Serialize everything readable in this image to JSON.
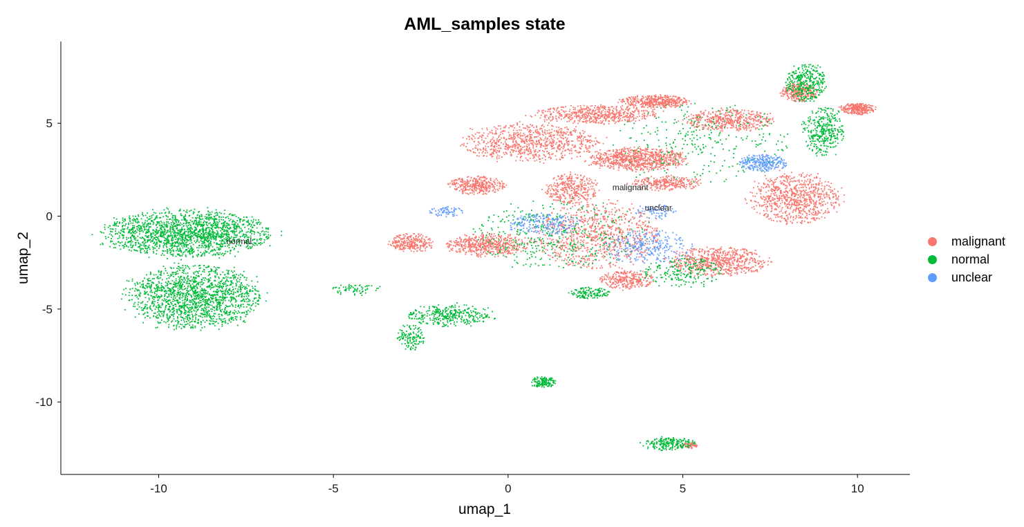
{
  "chart_data": {
    "type": "scatter",
    "title": "AML_samples state",
    "xlabel": "umap_1",
    "ylabel": "umap_2",
    "xlim": [
      -12.8,
      11.5
    ],
    "ylim": [
      -13.9,
      9.4
    ],
    "xticks": [
      -10,
      -5,
      0,
      5,
      10
    ],
    "yticks": [
      -10,
      -5,
      0,
      5
    ],
    "grid": false,
    "legend_position": "right",
    "series": [
      {
        "name": "malignant",
        "color": "#F8766D",
        "regions": [
          {
            "cx": 0.6,
            "cy": 4.0,
            "rx": 2.0,
            "ry": 1.0,
            "weight": 12
          },
          {
            "cx": 2.5,
            "cy": 5.5,
            "rx": 1.8,
            "ry": 0.5,
            "weight": 8
          },
          {
            "cx": 4.2,
            "cy": 6.2,
            "rx": 1.0,
            "ry": 0.35,
            "weight": 6
          },
          {
            "cx": 6.3,
            "cy": 5.2,
            "rx": 1.3,
            "ry": 0.6,
            "weight": 7
          },
          {
            "cx": 10.0,
            "cy": 5.8,
            "rx": 0.5,
            "ry": 0.3,
            "weight": 4
          },
          {
            "cx": 8.3,
            "cy": 6.7,
            "rx": 0.5,
            "ry": 0.5,
            "weight": 4
          },
          {
            "cx": 3.7,
            "cy": 3.1,
            "rx": 1.4,
            "ry": 0.6,
            "weight": 12
          },
          {
            "cx": 4.5,
            "cy": 1.8,
            "rx": 1.0,
            "ry": 0.4,
            "weight": 4
          },
          {
            "cx": 8.2,
            "cy": 1.0,
            "rx": 1.3,
            "ry": 1.4,
            "weight": 12
          },
          {
            "cx": 6.0,
            "cy": -2.4,
            "rx": 1.4,
            "ry": 0.8,
            "weight": 10
          },
          {
            "cx": 2.5,
            "cy": -1.0,
            "rx": 1.8,
            "ry": 1.8,
            "weight": 12
          },
          {
            "cx": -0.6,
            "cy": -1.5,
            "rx": 1.2,
            "ry": 0.6,
            "weight": 8
          },
          {
            "cx": -2.8,
            "cy": -1.4,
            "rx": 0.6,
            "ry": 0.5,
            "weight": 4
          },
          {
            "cx": -0.9,
            "cy": 1.7,
            "rx": 0.8,
            "ry": 0.5,
            "weight": 5
          },
          {
            "cx": 1.8,
            "cy": 1.5,
            "rx": 0.8,
            "ry": 0.8,
            "weight": 5
          },
          {
            "cx": 3.4,
            "cy": -3.4,
            "rx": 0.8,
            "ry": 0.5,
            "weight": 4
          },
          {
            "cx": 5.2,
            "cy": -12.3,
            "rx": 0.2,
            "ry": 0.15,
            "weight": 1
          }
        ]
      },
      {
        "name": "normal",
        "color": "#00BA38",
        "regions": [
          {
            "cx": -9.2,
            "cy": -0.9,
            "rx": 2.4,
            "ry": 1.25,
            "weight": 26
          },
          {
            "cx": -9.0,
            "cy": -4.3,
            "rx": 1.9,
            "ry": 1.7,
            "weight": 24
          },
          {
            "cx": 8.5,
            "cy": 7.2,
            "rx": 0.6,
            "ry": 1.0,
            "weight": 5
          },
          {
            "cx": 9.0,
            "cy": 4.6,
            "rx": 0.6,
            "ry": 1.3,
            "weight": 5
          },
          {
            "cx": -1.7,
            "cy": -5.3,
            "rx": 1.2,
            "ry": 0.6,
            "weight": 5
          },
          {
            "cx": -2.8,
            "cy": -6.5,
            "rx": 0.4,
            "ry": 0.7,
            "weight": 2
          },
          {
            "cx": -4.4,
            "cy": -3.9,
            "rx": 0.7,
            "ry": 0.3,
            "weight": 1
          },
          {
            "cx": 1.0,
            "cy": -8.9,
            "rx": 0.35,
            "ry": 0.3,
            "weight": 2
          },
          {
            "cx": 4.6,
            "cy": -12.2,
            "rx": 0.75,
            "ry": 0.35,
            "weight": 3
          },
          {
            "cx": 2.3,
            "cy": -4.1,
            "rx": 0.6,
            "ry": 0.3,
            "weight": 2
          },
          {
            "cx": 1.5,
            "cy": -1.0,
            "rx": 2.5,
            "ry": 1.8,
            "weight": 6
          },
          {
            "cx": 5.5,
            "cy": 4.0,
            "rx": 2.5,
            "ry": 2.2,
            "weight": 4
          },
          {
            "cx": 5.0,
            "cy": -3.0,
            "rx": 1.2,
            "ry": 0.8,
            "weight": 3
          }
        ]
      },
      {
        "name": "unclear",
        "color": "#619CFF",
        "regions": [
          {
            "cx": 7.3,
            "cy": 2.9,
            "rx": 0.7,
            "ry": 0.45,
            "weight": 4
          },
          {
            "cx": 4.0,
            "cy": -1.6,
            "rx": 1.3,
            "ry": 0.9,
            "weight": 4
          },
          {
            "cx": 1.0,
            "cy": -0.4,
            "rx": 1.0,
            "ry": 0.6,
            "weight": 3
          },
          {
            "cx": -1.8,
            "cy": 0.3,
            "rx": 0.5,
            "ry": 0.3,
            "weight": 1
          },
          {
            "cx": 4.2,
            "cy": 0.3,
            "rx": 0.6,
            "ry": 0.4,
            "weight": 1
          }
        ]
      }
    ],
    "annotations": [
      {
        "text": "normal",
        "x": -7.7,
        "y": -1.5
      },
      {
        "text": "malignant",
        "x": 3.5,
        "y": 1.4
      },
      {
        "text": "unclear",
        "x": 4.3,
        "y": 0.3
      }
    ]
  }
}
